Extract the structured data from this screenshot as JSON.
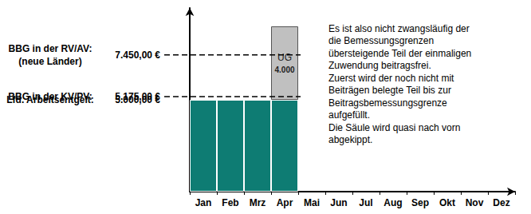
{
  "chart_data": {
    "type": "bar",
    "stacked": true,
    "categories": [
      "Jan",
      "Feb",
      "Mrz",
      "Apr",
      "Mai",
      "Jun",
      "Jul",
      "Aug",
      "Sep",
      "Okt",
      "Nov",
      "Dez"
    ],
    "series": [
      {
        "color": "#0e7c73",
        "values": [
          5000,
          5000,
          5000,
          5000,
          null,
          null,
          null,
          null,
          null,
          null,
          null,
          null
        ]
      },
      {
        "name": "UG",
        "color": "#c0c0c0",
        "values": [
          null,
          null,
          null,
          4000,
          null,
          null,
          null,
          null,
          null,
          null,
          null,
          null
        ],
        "value_labels": [
          null,
          null,
          null,
          "4.000",
          null,
          null,
          null,
          null,
          null,
          null,
          null,
          null
        ],
        "data_labels": true
      }
    ],
    "ylim": [
      0,
      10000
    ],
    "tick_labels": "x",
    "grid": false,
    "reference_lines": [
      {
        "name": "BBG in der RV/AV:\n(neue Länder)",
        "value": 7450,
        "value_label": "7.450,00 €",
        "line_style": "dashed"
      },
      {
        "name": "BBG in der KV/PV:",
        "value": 5175,
        "value_label": "5.175,00 €",
        "line_style": "dashed"
      },
      {
        "name": "Lfd. Arbeitsentgelt:",
        "value": 5000,
        "value_label": "5.000,00 €",
        "line_style": "none"
      }
    ],
    "annotation": "Es ist also nicht zwangsläufig der\ndie Bemessungsgrenzen\nübersteigende Teil der einmaligen\nZuwendung beitragsfrei.\nZuerst wird der noch nicht mit\nBeiträgen belegte Teil bis zur\nBeitragsbemessungsgrenze\naufgefüllt.\nDie Säule wird quasi nach vorn\nabgekippt."
  }
}
